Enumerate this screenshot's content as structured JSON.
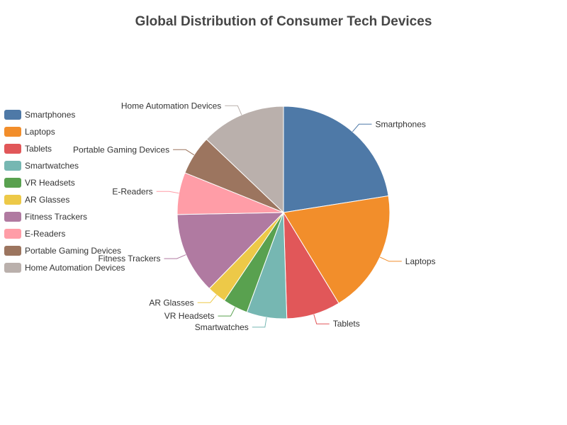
{
  "chart_data": {
    "type": "pie",
    "title": "Global Distribution of Consumer Tech Devices",
    "legend_position": "left",
    "categories": [
      "Smartphones",
      "Laptops",
      "Tablets",
      "Smartwatches",
      "VR Headsets",
      "AR Glasses",
      "Fitness Trackers",
      "E-Readers",
      "Portable Gaming Devices",
      "Home Automation Devices"
    ],
    "values": [
      22.5,
      18.8,
      8.2,
      6.1,
      3.8,
      2.9,
      12.4,
      6.4,
      6.0,
      12.9
    ],
    "colors": [
      "#4e79a7",
      "#f28e2b",
      "#e15759",
      "#76b7b2",
      "#59a14f",
      "#edc948",
      "#b07aa1",
      "#ff9da7",
      "#9c755f",
      "#bab0ac"
    ]
  }
}
